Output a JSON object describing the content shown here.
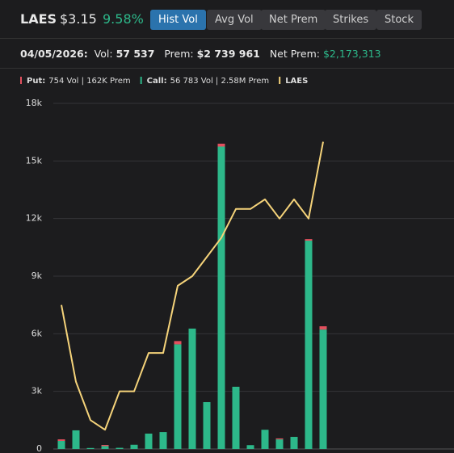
{
  "header": {
    "ticker": "LAES",
    "price": "$3.15",
    "change": "9.58%",
    "tabs": [
      "Hist Vol",
      "Avg Vol",
      "Net Prem",
      "Strikes",
      "Stock"
    ]
  },
  "summary": {
    "date": "04/05/2026:",
    "vol_label": "Vol:",
    "vol": "57 537",
    "prem_label": "Prem:",
    "prem": "$2 739 961",
    "net_prem_label": "Net Prem:",
    "net_prem": "$2,173,313"
  },
  "chart_data": {
    "type": "bar",
    "categories": [
      null,
      null,
      null,
      null,
      null,
      null,
      null,
      null,
      null,
      null,
      null,
      null,
      null,
      null,
      null,
      null,
      null,
      null,
      null
    ],
    "series": [
      {
        "name": "Call:",
        "stats": "56 783 Vol | 2.58M Prem",
        "color": "#2db88a",
        "values": [
          420,
          970,
          50,
          150,
          60,
          220,
          800,
          880,
          5450,
          6270,
          2440,
          15750,
          3240,
          200,
          1000,
          500,
          630,
          10850,
          6220
        ]
      },
      {
        "name": "Put:",
        "stats": "754 Vol | 162K Prem",
        "color": "#e2505e",
        "values": [
          80,
          0,
          0,
          60,
          0,
          0,
          0,
          0,
          170,
          0,
          0,
          150,
          0,
          0,
          0,
          50,
          0,
          80,
          170
        ]
      },
      {
        "name": "LAES",
        "type": "line",
        "color": "#f5d37a",
        "values": [
          7500,
          3500,
          1500,
          1000,
          3000,
          3000,
          5000,
          5000,
          8500,
          9000,
          10000,
          11000,
          12500,
          12500,
          13000,
          12000,
          13000,
          12000,
          16000
        ]
      }
    ],
    "stacked": true,
    "ylim": [
      0,
      18000
    ],
    "yticks": [
      0,
      {
        "value": 3000,
        "label": "3k"
      },
      {
        "value": 6000,
        "label": "6k"
      },
      {
        "value": 9000,
        "label": "9k"
      },
      {
        "value": 12000,
        "label": "12k"
      },
      {
        "value": 15000,
        "label": "15k"
      },
      {
        "value": 18000,
        "label": "18k"
      }
    ],
    "grid": true
  }
}
